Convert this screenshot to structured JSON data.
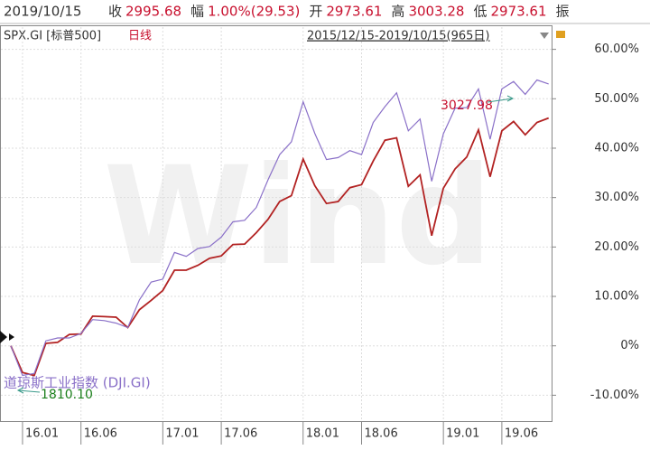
{
  "header": {
    "date": "2019/10/15",
    "fields": [
      {
        "label": "收",
        "value": "2995.68"
      },
      {
        "label": "幅",
        "value": "1.00%(29.53)"
      },
      {
        "label": "开",
        "value": "2973.61"
      },
      {
        "label": "高",
        "value": "3003.28"
      },
      {
        "label": "低",
        "value": "2973.61"
      }
    ],
    "more": "振",
    "period": "日线",
    "range": "2015/12/15-2019/10/15(965日)"
  },
  "chart_data": {
    "type": "line",
    "watermark": "Wind",
    "categories": [
      null,
      "16.01",
      null,
      null,
      null,
      null,
      "16.06",
      null,
      null,
      null,
      null,
      null,
      null,
      "17.01",
      null,
      null,
      null,
      null,
      "17.06",
      null,
      null,
      null,
      null,
      null,
      null,
      "18.01",
      null,
      null,
      null,
      null,
      "18.06",
      null,
      null,
      null,
      null,
      null,
      null,
      "19.01",
      null,
      null,
      null,
      null,
      "19.06",
      null,
      null,
      null,
      null
    ],
    "series": [
      {
        "name": "SPX.GI [标普500]",
        "color": "#b22222",
        "values": [
          0,
          -5.4,
          -6,
          0.5,
          0.7,
          2.3,
          2.4,
          6,
          5.9,
          5.8,
          3.7,
          7.3,
          9.2,
          11.2,
          15.3,
          15.3,
          16.3,
          17.7,
          18.2,
          20.5,
          20.6,
          22.9,
          25.6,
          29.2,
          30.4,
          37.8,
          32.4,
          28.8,
          29.2,
          32,
          32.6,
          37.4,
          41.6,
          42.1,
          32.3,
          34.6,
          22.3,
          31.9,
          35.8,
          38.2,
          43.7,
          34.2,
          43.5,
          45.4,
          42.7,
          45.2,
          46.1
        ]
      },
      {
        "name": "道琼斯工业指数 (DJI.GI)",
        "color": "#8a70c8",
        "values": [
          0,
          -6,
          -5.6,
          1,
          1.6,
          1.6,
          2.5,
          5.3,
          5.1,
          4.6,
          3.7,
          9.3,
          12.9,
          13.5,
          18.9,
          18.1,
          19.7,
          20.1,
          22,
          25.1,
          25.4,
          28,
          33.6,
          38.7,
          41.3,
          49.4,
          43,
          37.7,
          38.1,
          39.5,
          38.7,
          45.2,
          48.4,
          51.2,
          43.5,
          45.9,
          33.3,
          42.9,
          48.1,
          48.2,
          52,
          41.8,
          52,
          53.5,
          50.9,
          53.8,
          53
        ]
      }
    ],
    "ylim": [
      -14.5,
      64.5
    ],
    "yticks": [
      {
        "value": -10,
        "label": "-10.00%"
      },
      0,
      {
        "value": 0,
        "label": "0%"
      },
      {
        "value": 10,
        "label": "10.00%"
      },
      {
        "value": 20,
        "label": "20.00%"
      },
      {
        "value": 30,
        "label": "30.00%"
      },
      {
        "value": 40,
        "label": "40.00%"
      },
      {
        "value": 50,
        "label": "50.00%"
      },
      {
        "value": 60,
        "label": "60.00%"
      }
    ],
    "annotations": [
      {
        "text": "3027.98",
        "color": "#c8102e"
      },
      {
        "text": "1810.10",
        "color": "#1a7f1a"
      }
    ],
    "grid": true
  }
}
